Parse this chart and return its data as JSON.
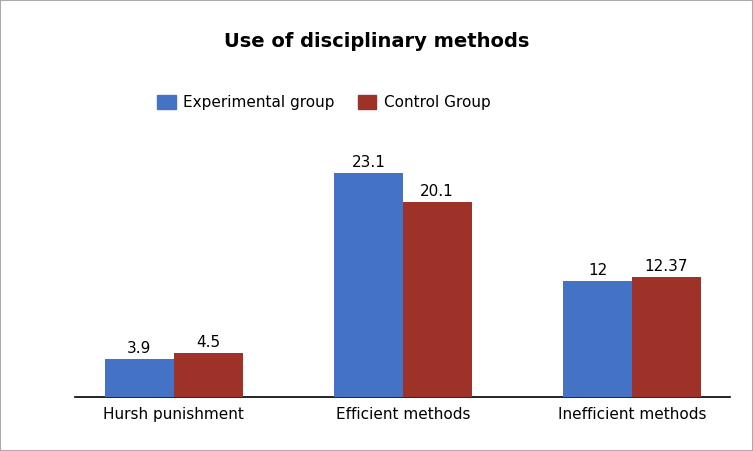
{
  "title": "Use of disciplinary methods",
  "categories": [
    "Hursh punishment",
    "Efficient methods",
    "Inefficient methods"
  ],
  "series": [
    {
      "name": "Experimental group",
      "values": [
        3.9,
        23.1,
        12
      ],
      "color": "#4472C4"
    },
    {
      "name": "Control Group",
      "values": [
        4.5,
        20.1,
        12.37
      ],
      "color": "#9E3228"
    }
  ],
  "bar_width": 0.3,
  "ylim": [
    0,
    27
  ],
  "title_fontsize": 14,
  "tick_fontsize": 11,
  "legend_fontsize": 11,
  "value_fontsize": 11,
  "background_color": "#ffffff",
  "border_color": "#aaaaaa",
  "legend_ncol": 2
}
